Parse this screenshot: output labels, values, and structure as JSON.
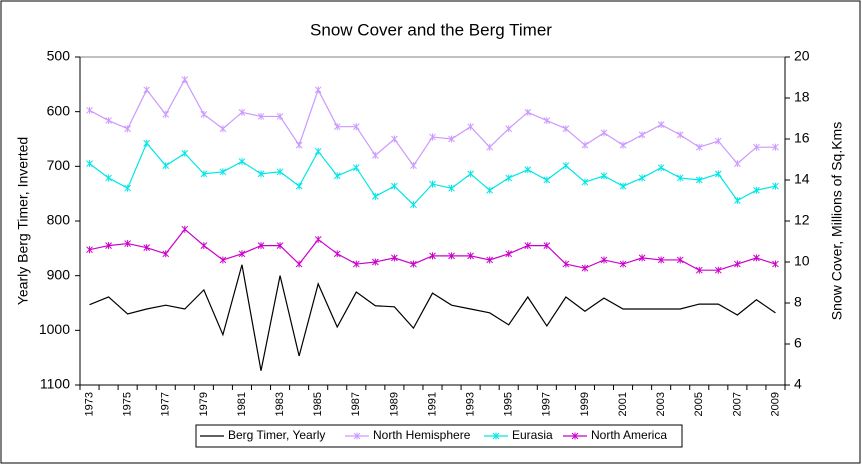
{
  "chart_data": {
    "type": "line",
    "title": "Snow Cover and the Berg Timer",
    "ylabel": "Yearly Berg Timer, Inverted",
    "y2label": "Snow Cover, Millions of Sq.Kms",
    "categories": [
      "1973",
      null,
      "1975",
      null,
      "1977",
      null,
      "1979",
      null,
      "1981",
      null,
      "1983",
      null,
      "1985",
      null,
      "1987",
      null,
      "1989",
      null,
      "1991",
      null,
      "1993",
      null,
      "1995",
      null,
      "1997",
      null,
      "1999",
      null,
      "2001",
      null,
      "2003",
      null,
      "2005",
      null,
      "2007",
      null,
      "2009"
    ],
    "ylim": [
      500,
      1100
    ],
    "yticks": [
      500,
      600,
      700,
      800,
      900,
      1000,
      1100
    ],
    "y_inverted": true,
    "y2lim": [
      4,
      20
    ],
    "y2ticks": [
      4,
      6,
      8,
      10,
      12,
      14,
      16,
      18,
      20
    ],
    "grid": false,
    "legend": "bottom",
    "series": [
      {
        "name": "Berg Timer, Yearly",
        "color": "#000000",
        "marker": false,
        "values": [
          953,
          939,
          970,
          961,
          954,
          961,
          926,
          1008,
          880,
          1074,
          900,
          1047,
          915,
          994,
          930,
          955,
          957,
          996,
          932,
          954,
          961,
          968,
          990,
          939,
          992,
          939,
          965,
          941,
          961,
          961,
          961,
          961,
          952,
          952,
          972,
          944,
          968
        ]
      },
      {
        "name": "North Hemisphere",
        "color": "#cc99ff",
        "axis": "y2",
        "marker": true,
        "values": [
          17.4,
          16.9,
          16.5,
          18.4,
          17.2,
          18.9,
          17.2,
          16.5,
          17.3,
          17.1,
          17.1,
          15.7,
          18.4,
          16.6,
          16.6,
          15.2,
          16.0,
          14.7,
          16.1,
          16.0,
          16.6,
          15.6,
          16.5,
          17.3,
          16.9,
          16.5,
          15.7,
          16.3,
          15.7,
          16.2,
          16.7,
          16.2,
          15.6,
          15.9,
          14.8,
          15.6,
          15.6
        ]
      },
      {
        "name": "Eurasia",
        "color": "#00e6e6",
        "axis": "y2",
        "marker": true,
        "values": [
          14.8,
          14.1,
          13.6,
          15.8,
          14.7,
          15.3,
          14.3,
          14.4,
          14.9,
          14.3,
          14.4,
          13.7,
          15.4,
          14.2,
          14.6,
          13.2,
          13.7,
          12.8,
          13.8,
          13.6,
          14.3,
          13.5,
          14.1,
          14.5,
          14.0,
          14.7,
          13.9,
          14.2,
          13.7,
          14.1,
          14.6,
          14.1,
          14.0,
          14.3,
          13.0,
          13.5,
          13.7
        ]
      },
      {
        "name": "North America",
        "color": "#cc00cc",
        "axis": "y2",
        "marker": true,
        "values": [
          10.6,
          10.8,
          10.9,
          10.7,
          10.4,
          11.6,
          10.8,
          10.1,
          10.4,
          10.8,
          10.8,
          9.9,
          11.1,
          10.4,
          9.9,
          10.0,
          10.2,
          9.9,
          10.3,
          10.3,
          10.3,
          10.1,
          10.4,
          10.8,
          10.8,
          9.9,
          9.7,
          10.1,
          9.9,
          10.2,
          10.1,
          10.1,
          9.6,
          9.6,
          9.9,
          10.2,
          9.9
        ]
      }
    ]
  }
}
